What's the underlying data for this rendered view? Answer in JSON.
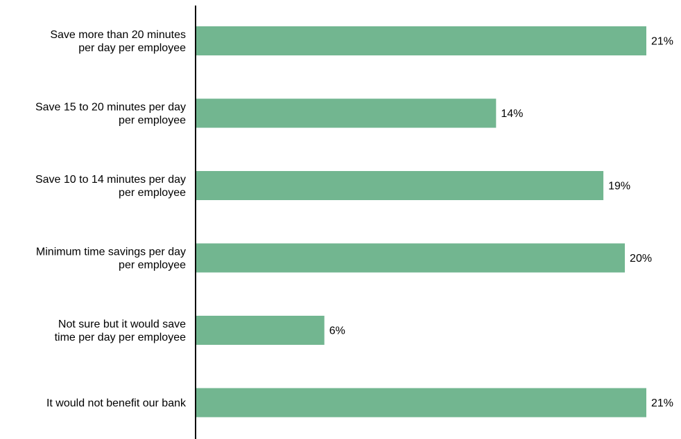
{
  "chart_data": {
    "type": "bar",
    "orientation": "horizontal",
    "title": "",
    "xlabel": "",
    "ylabel": "",
    "grid": false,
    "legend": "none",
    "categories": [
      [
        "Save more than 20 minutes",
        "per day per employee"
      ],
      [
        "Save 15 to 20 minutes per day",
        "per employee"
      ],
      [
        "Save 10 to 14 minutes per day",
        "per employee"
      ],
      [
        "Minimum time savings per day",
        "per employee"
      ],
      [
        "Not sure but it would save",
        "time per day per employee"
      ],
      [
        "It would not benefit our bank"
      ]
    ],
    "values": [
      21,
      14,
      19,
      20,
      6,
      21
    ],
    "value_labels": [
      "21%",
      "14%",
      "19%",
      "20%",
      "6%",
      "21%"
    ],
    "xlim": [
      0,
      21
    ],
    "bar_color": "#72b690",
    "axis_color": "#000000"
  }
}
